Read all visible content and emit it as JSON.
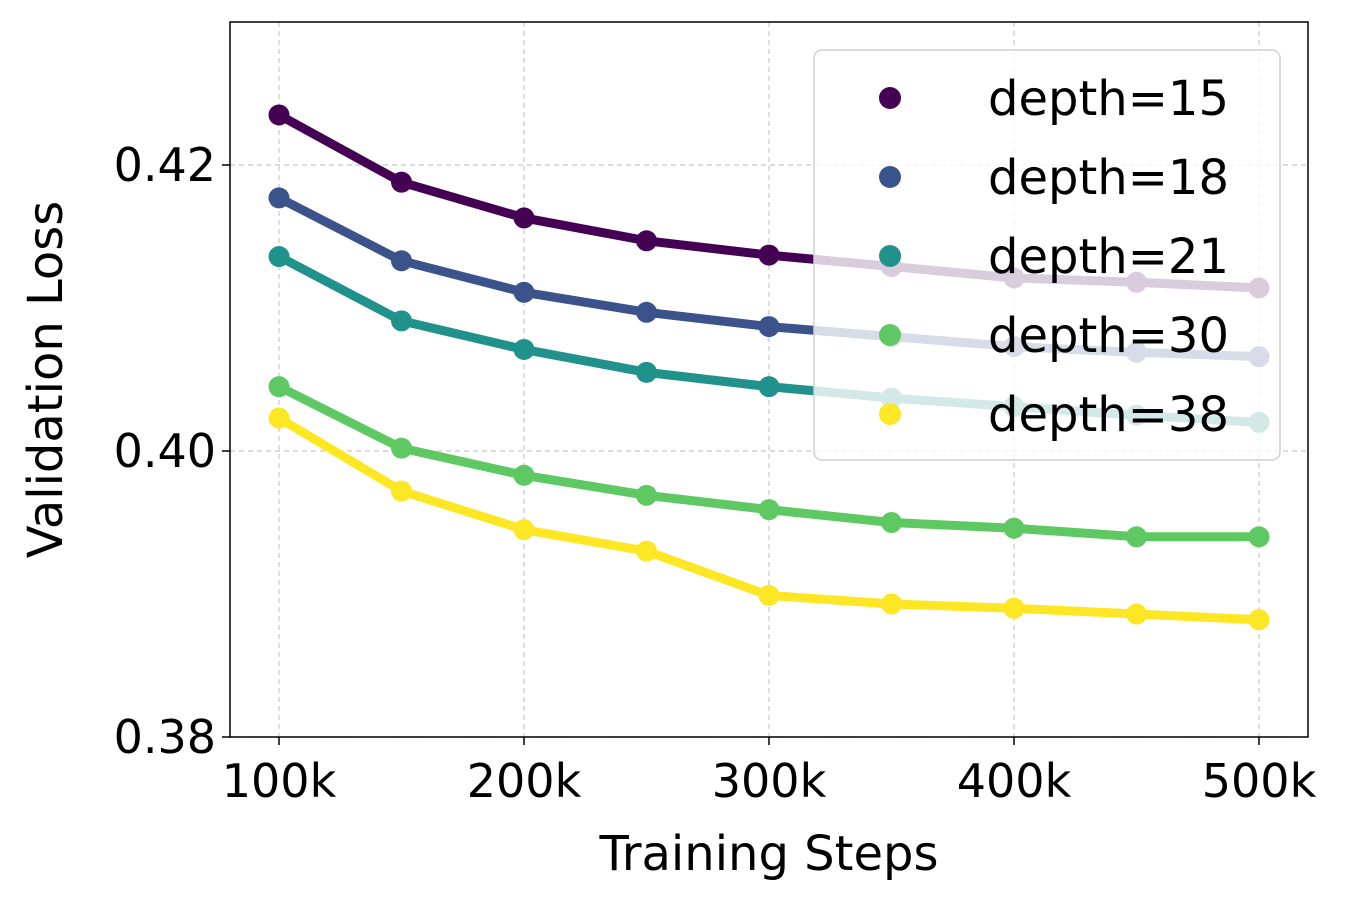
{
  "chart_data": {
    "type": "line",
    "title": "",
    "xlabel": "Training Steps",
    "ylabel": "Validation Loss",
    "x": [
      100000,
      150000,
      200000,
      250000,
      300000,
      350000,
      400000,
      450000,
      500000
    ],
    "xticks": [
      100000,
      200000,
      300000,
      400000,
      500000
    ],
    "xtick_labels": [
      "100k",
      "200k",
      "300k",
      "400k",
      "500k"
    ],
    "yticks": [
      0.38,
      0.4,
      0.42
    ],
    "ytick_labels": [
      "0.38",
      "0.40",
      "0.42"
    ],
    "xlim": [
      80000,
      520000
    ],
    "ylim": [
      0.38,
      0.43
    ],
    "grid": true,
    "legend_position": "top-right",
    "series": [
      {
        "name": "depth=15",
        "color": "#440154",
        "values": [
          0.4235,
          0.4188,
          0.4163,
          0.4147,
          0.4137,
          0.4129,
          0.4121,
          0.4118,
          0.4114
        ]
      },
      {
        "name": "depth=18",
        "color": "#3b528b",
        "values": [
          0.4177,
          0.4133,
          0.4111,
          0.4097,
          0.4087,
          0.408,
          0.4073,
          0.4069,
          0.4066
        ]
      },
      {
        "name": "depth=21",
        "color": "#21918c",
        "values": [
          0.4136,
          0.4091,
          0.4071,
          0.4055,
          0.4045,
          0.4037,
          0.4031,
          0.4025,
          0.402
        ]
      },
      {
        "name": "depth=30",
        "color": "#5ec962",
        "values": [
          0.4045,
          0.4002,
          0.3983,
          0.3969,
          0.3959,
          0.395,
          0.3946,
          0.394,
          0.394
        ]
      },
      {
        "name": "depth=38",
        "color": "#fde725",
        "values": [
          0.4023,
          0.3972,
          0.3945,
          0.393,
          0.3899,
          0.3893,
          0.389,
          0.3886,
          0.3882
        ]
      }
    ]
  }
}
